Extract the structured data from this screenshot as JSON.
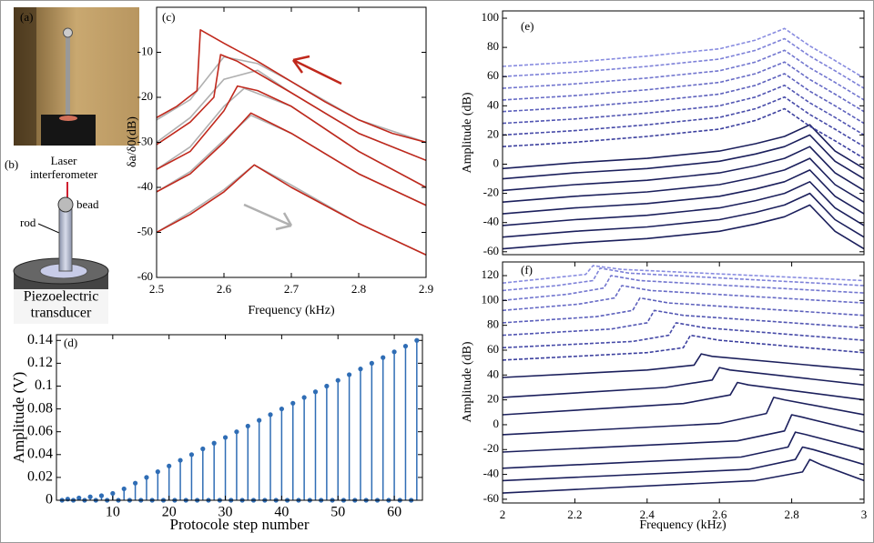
{
  "panel_a": {
    "label": "(a)"
  },
  "panel_b": {
    "label": "(b)",
    "laser_1": "Laser",
    "laser_2": "interferometer",
    "bead": "bead",
    "rod": "rod",
    "piezo_1": "Piezoelectric",
    "piezo_2": "transducer"
  },
  "chart_data": [
    {
      "type": "line",
      "label": "(c)",
      "xlabel": "Frequency (kHz)",
      "ylabel": "δa/δ0(dB)",
      "xlim": [
        2.5,
        2.9
      ],
      "ylim": [
        -60,
        0
      ],
      "xticks": [
        2.5,
        2.6,
        2.7,
        2.8,
        2.9
      ],
      "yticks": [
        -60,
        -50,
        -40,
        -30,
        -20,
        -10
      ],
      "series": [
        {
          "color": "#b0b0b0",
          "x": [
            2.5,
            2.55,
            2.6,
            2.65,
            2.7,
            2.8,
            2.9
          ],
          "values": [
            -25,
            -20.5,
            -11,
            -12.5,
            -16.5,
            -25,
            -30
          ]
        },
        {
          "color": "#b0b0b0",
          "x": [
            2.5,
            2.55,
            2.6,
            2.65,
            2.7,
            2.8,
            2.9
          ],
          "values": [
            -30,
            -24.5,
            -16,
            -14,
            -19,
            -28,
            -34
          ]
        },
        {
          "color": "#b0b0b0",
          "x": [
            2.5,
            2.55,
            2.6,
            2.63,
            2.7,
            2.8,
            2.9
          ],
          "values": [
            -36,
            -31,
            -22,
            -18,
            -22,
            -32,
            -40
          ]
        },
        {
          "color": "#b0b0b0",
          "x": [
            2.5,
            2.55,
            2.6,
            2.64,
            2.7,
            2.8,
            2.9
          ],
          "values": [
            -41,
            -36.5,
            -29.5,
            -24,
            -28,
            -37,
            -44
          ]
        },
        {
          "color": "#b0b0b0",
          "x": [
            2.5,
            2.55,
            2.6,
            2.645,
            2.7,
            2.8,
            2.9
          ],
          "values": [
            -50,
            -45.5,
            -40.5,
            -35,
            -39.5,
            -48,
            -55
          ]
        },
        {
          "color": "#c0281c",
          "x": [
            2.5,
            2.53,
            2.56,
            2.565,
            2.6,
            2.65,
            2.7,
            2.75,
            2.8,
            2.85,
            2.9
          ],
          "values": [
            -24.5,
            -22,
            -18.5,
            -5,
            -8,
            -12,
            -16.5,
            -21,
            -25,
            -28,
            -30
          ]
        },
        {
          "color": "#c0281c",
          "x": [
            2.5,
            2.55,
            2.585,
            2.595,
            2.62,
            2.7,
            2.8,
            2.9
          ],
          "values": [
            -30.5,
            -25.5,
            -20,
            -10.5,
            -12,
            -19,
            -28,
            -34
          ]
        },
        {
          "color": "#c0281c",
          "x": [
            2.5,
            2.55,
            2.6,
            2.62,
            2.65,
            2.7,
            2.8,
            2.9
          ],
          "values": [
            -36,
            -32,
            -23,
            -17.5,
            -18.5,
            -22,
            -32,
            -40
          ]
        },
        {
          "color": "#c0281c",
          "x": [
            2.5,
            2.55,
            2.6,
            2.64,
            2.7,
            2.8,
            2.9
          ],
          "values": [
            -41,
            -37,
            -30,
            -23.5,
            -28,
            -37,
            -44
          ]
        },
        {
          "color": "#c0281c",
          "x": [
            2.5,
            2.55,
            2.6,
            2.645,
            2.7,
            2.8,
            2.9
          ],
          "values": [
            -50,
            -46,
            -41,
            -35,
            -40,
            -48,
            -55
          ]
        }
      ]
    },
    {
      "type": "stem",
      "label": "(d)",
      "xlabel": "Protocole step number",
      "ylabel": "Amplitude (V)",
      "color": "#2f6db5",
      "xlim": [
        0,
        65
      ],
      "ylim": [
        0,
        0.145
      ],
      "xticks": [
        10,
        20,
        30,
        40,
        50,
        60
      ],
      "yticks": [
        0,
        0.02,
        0.04,
        0.06,
        0.08,
        0.1,
        0.12,
        0.14
      ],
      "x": [
        1,
        2,
        3,
        4,
        5,
        6,
        7,
        8,
        9,
        10,
        11,
        12,
        13,
        14,
        15,
        16,
        17,
        18,
        19,
        20,
        21,
        22,
        23,
        24,
        25,
        26,
        27,
        28,
        29,
        30,
        31,
        32,
        33,
        34,
        35,
        36,
        37,
        38,
        39,
        40,
        41,
        42,
        43,
        44,
        45,
        46,
        47,
        48,
        49,
        50,
        51,
        52,
        53,
        54,
        55,
        56,
        57,
        58,
        59,
        60,
        61,
        62,
        63,
        64
      ],
      "values": [
        0,
        0.001,
        0,
        0.002,
        0,
        0.003,
        0,
        0.004,
        0,
        0.006,
        0,
        0.01,
        0,
        0.015,
        0,
        0.02,
        0,
        0.025,
        0,
        0.03,
        0,
        0.035,
        0,
        0.04,
        0,
        0.045,
        0,
        0.05,
        0,
        0.055,
        0,
        0.06,
        0,
        0.065,
        0,
        0.07,
        0,
        0.075,
        0,
        0.08,
        0,
        0.085,
        0,
        0.09,
        0,
        0.095,
        0,
        0.1,
        0,
        0.105,
        0,
        0.11,
        0,
        0.115,
        0,
        0.12,
        0,
        0.125,
        0,
        0.13,
        0,
        0.135,
        0,
        0.14
      ]
    },
    {
      "type": "line",
      "label": "(e)",
      "ylabel": "Amplitude (dB)",
      "xlim": [
        2,
        3
      ],
      "ylim": [
        -62,
        105
      ],
      "yticks": [
        -60,
        -40,
        -20,
        0,
        20,
        40,
        60,
        80,
        100
      ],
      "x": [
        2.0,
        2.2,
        2.4,
        2.6,
        2.7,
        2.78,
        2.85,
        2.92,
        3.0
      ],
      "series": [
        {
          "color": "#1b1f5c",
          "values": [
            -58,
            -54,
            -51,
            -46,
            -41,
            -36,
            -28,
            -46,
            -58
          ]
        },
        {
          "color": "#1b1f5c",
          "values": [
            -50,
            -46,
            -43,
            -38,
            -33,
            -28,
            -20,
            -38,
            -50
          ]
        },
        {
          "color": "#1b1f5c",
          "values": [
            -42,
            -38,
            -35,
            -30,
            -25,
            -20,
            -12,
            -30,
            -42
          ]
        },
        {
          "color": "#1b1f5c",
          "values": [
            -34,
            -30,
            -27,
            -22,
            -17,
            -12,
            -4,
            -22,
            -34
          ]
        },
        {
          "color": "#1b1f5c",
          "values": [
            -26,
            -22,
            -19,
            -14,
            -9,
            -4,
            4,
            -14,
            -26
          ]
        },
        {
          "color": "#1b1f5c",
          "values": [
            -18,
            -14,
            -11,
            -6,
            -1,
            4,
            12,
            -6,
            -18
          ]
        },
        {
          "color": "#1b1f5c",
          "values": [
            -10,
            -6,
            -3,
            2,
            7,
            12,
            20,
            2,
            -10
          ]
        },
        {
          "color": "#1b1f5c",
          "values": [
            -3,
            1,
            4,
            9,
            14,
            19,
            27,
            9,
            -3
          ]
        },
        {
          "color": "#3b3f9e",
          "dashed": true,
          "values": [
            12,
            15,
            19,
            24,
            30,
            38,
            26,
            16,
            4
          ]
        },
        {
          "color": "#464aa8",
          "dashed": true,
          "values": [
            20,
            23,
            27,
            32,
            38,
            46,
            34,
            24,
            12
          ]
        },
        {
          "color": "#5155b2",
          "dashed": true,
          "values": [
            28,
            31,
            35,
            40,
            46,
            54,
            42,
            32,
            20
          ]
        },
        {
          "color": "#5c60bc",
          "dashed": true,
          "values": [
            36,
            39,
            43,
            48,
            54,
            62,
            50,
            40,
            28
          ]
        },
        {
          "color": "#676bc6",
          "dashed": true,
          "values": [
            44,
            47,
            51,
            56,
            62,
            70,
            58,
            48,
            36
          ]
        },
        {
          "color": "#7276cf",
          "dashed": true,
          "values": [
            52,
            55,
            59,
            64,
            70,
            78,
            66,
            56,
            44
          ]
        },
        {
          "color": "#7d81d8",
          "dashed": true,
          "values": [
            60,
            63,
            67,
            72,
            78,
            86,
            74,
            64,
            52
          ]
        },
        {
          "color": "#888ce0",
          "dashed": true,
          "values": [
            67,
            70,
            74,
            79,
            85,
            93,
            81,
            71,
            59
          ]
        }
      ]
    },
    {
      "type": "line",
      "label": "(f)",
      "xlabel": "Frequency (kHz)",
      "ylabel": "Amplitude (dB)",
      "xlim": [
        2,
        3
      ],
      "ylim": [
        -63,
        131
      ],
      "xticks": [
        2,
        2.2,
        2.4,
        2.6,
        2.8,
        3
      ],
      "yticks": [
        -60,
        -40,
        -20,
        0,
        20,
        40,
        60,
        80,
        100,
        120
      ],
      "series": [
        {
          "color": "#1b1f5c",
          "x": [
            2,
            2.7,
            2.83,
            2.85,
            2.88,
            3
          ],
          "values": [
            -55,
            -45,
            -38,
            -28,
            -32,
            -45
          ]
        },
        {
          "color": "#1b1f5c",
          "x": [
            2,
            2.68,
            2.81,
            2.83,
            2.86,
            3
          ],
          "values": [
            -45,
            -36,
            -28,
            -18,
            -20,
            -32
          ]
        },
        {
          "color": "#1b1f5c",
          "x": [
            2,
            2.66,
            2.79,
            2.81,
            2.84,
            3
          ],
          "values": [
            -35,
            -26,
            -18,
            -6,
            -8,
            -20
          ]
        },
        {
          "color": "#1b1f5c",
          "x": [
            2,
            2.65,
            2.78,
            2.8,
            2.83,
            3
          ],
          "values": [
            -22,
            -13,
            -5,
            8,
            6,
            -6
          ]
        },
        {
          "color": "#1b1f5c",
          "x": [
            2,
            2.6,
            2.73,
            2.75,
            2.78,
            3
          ],
          "values": [
            -8,
            1,
            9,
            22,
            20,
            8
          ]
        },
        {
          "color": "#1b1f5c",
          "x": [
            2,
            2.5,
            2.63,
            2.65,
            2.68,
            3
          ],
          "values": [
            8,
            17,
            24,
            34,
            32,
            20
          ]
        },
        {
          "color": "#1b1f5c",
          "x": [
            2,
            2.45,
            2.58,
            2.6,
            2.63,
            3
          ],
          "values": [
            22,
            30,
            36,
            46,
            44,
            32
          ]
        },
        {
          "color": "#1b1f5c",
          "x": [
            2,
            2.4,
            2.53,
            2.55,
            2.58,
            3
          ],
          "values": [
            38,
            44,
            48,
            57,
            55,
            44
          ]
        },
        {
          "color": "#3b3f9e",
          "dashed": true,
          "x": [
            2,
            2.4,
            2.5,
            2.52,
            2.6,
            3
          ],
          "values": [
            52,
            58,
            62,
            72,
            68,
            58
          ]
        },
        {
          "color": "#464aa8",
          "dashed": true,
          "x": [
            2,
            2.36,
            2.46,
            2.48,
            2.56,
            3
          ],
          "values": [
            62,
            67,
            72,
            82,
            78,
            68
          ]
        },
        {
          "color": "#5155b2",
          "dashed": true,
          "x": [
            2,
            2.3,
            2.4,
            2.42,
            2.5,
            3
          ],
          "values": [
            72,
            77,
            82,
            92,
            88,
            78
          ]
        },
        {
          "color": "#5c60bc",
          "dashed": true,
          "x": [
            2,
            2.26,
            2.36,
            2.38,
            2.46,
            3
          ],
          "values": [
            82,
            87,
            92,
            102,
            98,
            88
          ]
        },
        {
          "color": "#676bc6",
          "dashed": true,
          "x": [
            2,
            2.21,
            2.31,
            2.33,
            2.41,
            3
          ],
          "values": [
            92,
            97,
            102,
            112,
            108,
            98
          ]
        },
        {
          "color": "#7276cf",
          "dashed": true,
          "x": [
            2,
            2.18,
            2.28,
            2.3,
            2.38,
            3
          ],
          "values": [
            100,
            105,
            110,
            120,
            116,
            106
          ]
        },
        {
          "color": "#7d81d8",
          "dashed": true,
          "x": [
            2,
            2.15,
            2.25,
            2.27,
            2.35,
            3
          ],
          "values": [
            108,
            112,
            116,
            126,
            122,
            112
          ]
        },
        {
          "color": "#888ce0",
          "dashed": true,
          "x": [
            2,
            2.13,
            2.23,
            2.25,
            2.33,
            3
          ],
          "values": [
            114,
            118,
            121,
            128,
            125,
            116
          ]
        }
      ]
    }
  ]
}
